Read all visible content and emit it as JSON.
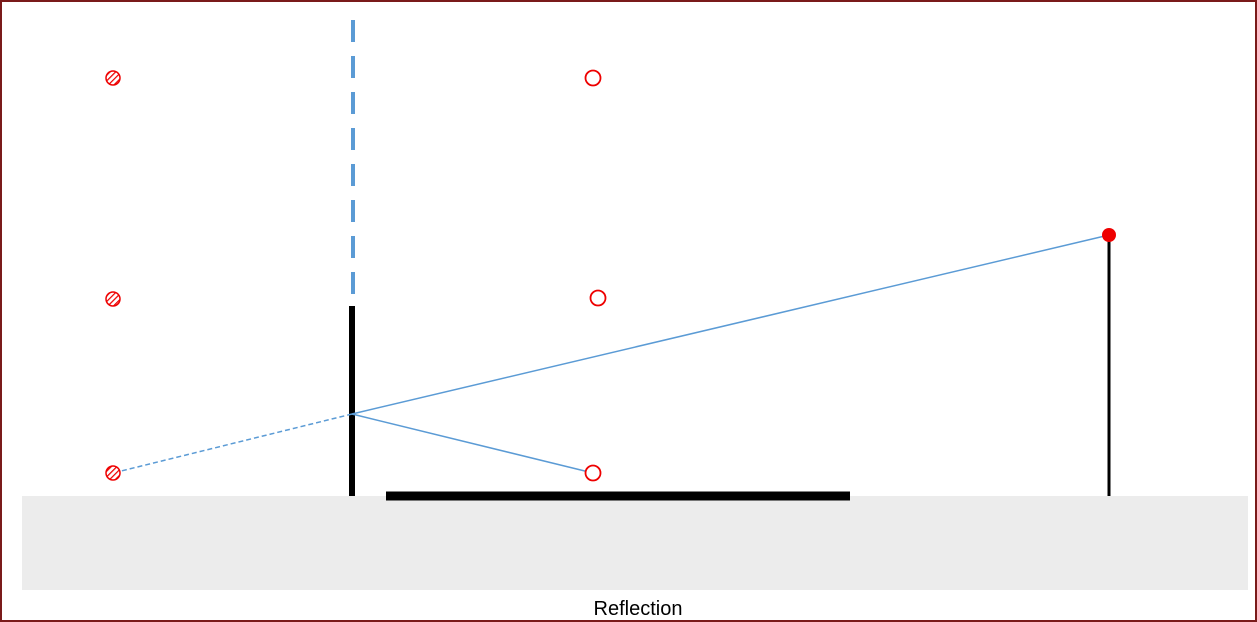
{
  "caption": "Reflection"
}
